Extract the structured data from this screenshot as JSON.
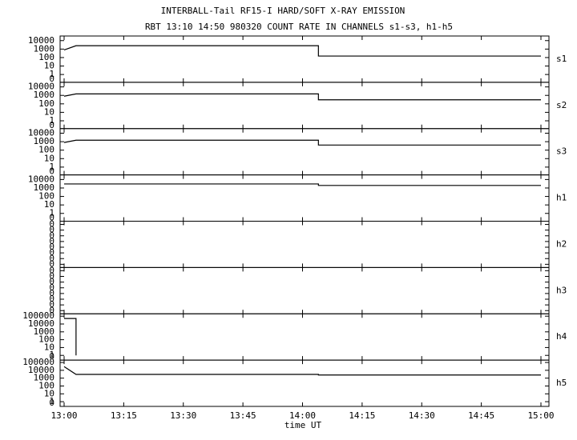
{
  "chart_data": {
    "type": "line",
    "title": "INTERBALL-Tail RF15-I HARD/SOFT X-RAY EMISSION",
    "subtitle": "RBT 13:10 14:50 980320  COUNT RATE IN CHANNELS s1-s3, h1-h5",
    "xlabel": "time UT",
    "xlim": [
      "13:00",
      "15:00"
    ],
    "xticks": [
      "13:00",
      "13:15",
      "13:30",
      "13:45",
      "14:00",
      "14:15",
      "14:30",
      "14:45",
      "15:00"
    ],
    "log_y": true,
    "color": "#000000",
    "panels": [
      {
        "name": "s1",
        "ylim": [
          0.12,
          35000
        ],
        "yticks": [
          10000,
          1000,
          100,
          10,
          1
        ],
        "bottom_label": "0",
        "x": [
          "13:00",
          "13:03",
          "14:04",
          "14:04",
          "15:00"
        ],
        "values": [
          800,
          2500,
          2500,
          150,
          150
        ]
      },
      {
        "name": "s2",
        "ylim": [
          0.12,
          35000
        ],
        "yticks": [
          10000,
          1000,
          100,
          10,
          1
        ],
        "bottom_label": "0",
        "x": [
          "13:00",
          "13:03",
          "14:04",
          "14:04",
          "15:00"
        ],
        "values": [
          800,
          1500,
          1500,
          300,
          300
        ]
      },
      {
        "name": "s3",
        "ylim": [
          0.12,
          35000
        ],
        "yticks": [
          10000,
          1000,
          100,
          10,
          1
        ],
        "bottom_label": "0",
        "x": [
          "13:00",
          "13:03",
          "14:04",
          "14:04",
          "15:00"
        ],
        "values": [
          800,
          1500,
          1500,
          400,
          400
        ]
      },
      {
        "name": "h1",
        "ylim": [
          0.12,
          35000
        ],
        "yticks": [
          10000,
          1000,
          100,
          10,
          1
        ],
        "bottom_label": "0",
        "x": [
          "13:00",
          "13:03",
          "14:04",
          "14:04",
          "15:00"
        ],
        "values": [
          3000,
          3000,
          3000,
          2000,
          2000
        ]
      },
      {
        "name": "h2",
        "zero_labels": [
          "0",
          "0",
          "0",
          "0",
          "0",
          "0",
          "0",
          "0"
        ]
      },
      {
        "name": "h3",
        "zero_labels": [
          "0",
          "0",
          "0",
          "0",
          "0",
          "0",
          "0",
          "0"
        ]
      },
      {
        "name": "h4",
        "ylim": [
          0.25,
          200000
        ],
        "yticks": [
          100000,
          10000,
          1000,
          100,
          10,
          1
        ],
        "bottom_label": "0",
        "x": [
          "13:00",
          "13:03",
          "13:03"
        ],
        "values": [
          50000,
          50000,
          1
        ]
      },
      {
        "name": "h5",
        "ylim": [
          0.25,
          200000
        ],
        "yticks": [
          100000,
          10000,
          1000,
          100,
          10,
          1
        ],
        "bottom_label": "0",
        "x": [
          "13:00",
          "13:03",
          "14:04",
          "14:04",
          "15:00"
        ],
        "values": [
          30000,
          3000,
          3000,
          2500,
          2500
        ]
      }
    ]
  }
}
